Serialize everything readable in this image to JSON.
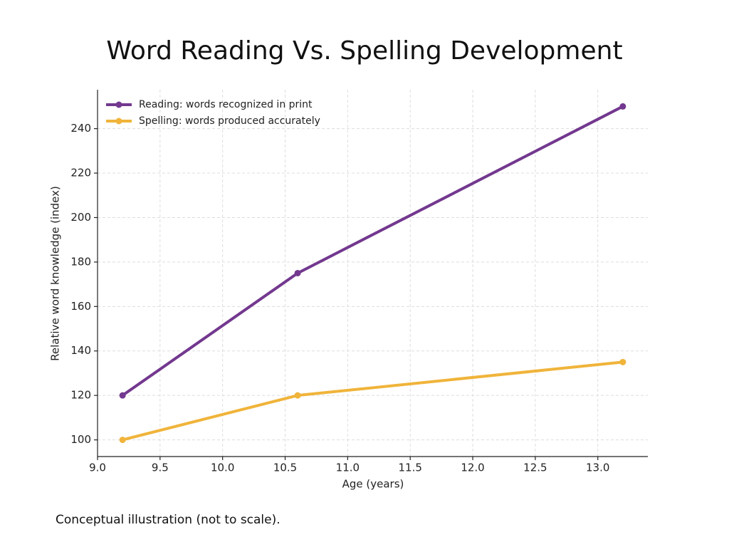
{
  "chart_data": {
    "type": "line",
    "title": "Word Reading Vs. Spelling Development",
    "xlabel": "Age (years)",
    "ylabel": "Relative word knowledge (index)",
    "note": "Conceptual illustration (not to scale).",
    "x": [
      9.2,
      10.6,
      13.2
    ],
    "series": [
      {
        "name": "Reading: words recognized in print",
        "color": "#73388f",
        "values": [
          120,
          175,
          250
        ]
      },
      {
        "name": "Spelling: words produced accurately",
        "color": "#f0b43a",
        "values": [
          100,
          120,
          135
        ]
      }
    ],
    "xlim": [
      9.0,
      13.4
    ],
    "ylim": [
      92.5,
      257.5
    ],
    "xticks": [
      {
        "value": 9,
        "label": "9.0"
      },
      9.5,
      {
        "value": 10,
        "label": "10.0"
      },
      10.5,
      {
        "value": 11,
        "label": "11.0"
      },
      11.5,
      {
        "value": 12,
        "label": "12.0"
      },
      12.5,
      {
        "value": 13,
        "label": "13.0"
      }
    ],
    "yticks": [
      100,
      120,
      140,
      160,
      180,
      200,
      220,
      240
    ],
    "grid": true,
    "legend": "upper-left"
  }
}
